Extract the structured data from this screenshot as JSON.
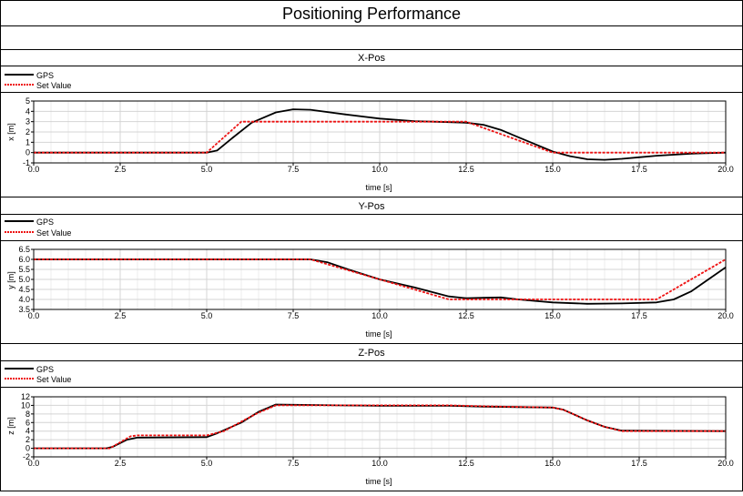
{
  "page": {
    "title": "Positioning Performance"
  },
  "colors": {
    "gps": "#000000",
    "set_value": "#ee1111",
    "grid": "#d4d4d4",
    "frame": "#000000"
  },
  "chart_data": [
    {
      "type": "line",
      "title": "X-Pos",
      "xlabel": "time [s]",
      "ylabel": "x [m]",
      "xlim": [
        0,
        20
      ],
      "ylim": [
        -1,
        5
      ],
      "xticks": [
        "0.0",
        "2.5",
        "5.0",
        "7.5",
        "10.0",
        "12.5",
        "15.0",
        "17.5",
        "20.0"
      ],
      "yticks": [
        "-1",
        "0",
        "1",
        "2",
        "3",
        "4",
        "5"
      ],
      "grid": true,
      "legend": "top-left",
      "series": [
        {
          "name": "GPS",
          "color": "#000000",
          "style": "solid",
          "x": [
            0,
            5.0,
            5.3,
            5.7,
            6.3,
            7.0,
            7.5,
            8.0,
            9.0,
            10.0,
            11.0,
            12.0,
            12.5,
            13.0,
            13.5,
            14.0,
            14.5,
            15.0,
            15.5,
            16.0,
            16.5,
            17.0,
            17.5,
            18.0,
            19.0,
            20.0
          ],
          "y": [
            0,
            0,
            0.2,
            1.3,
            2.9,
            3.9,
            4.2,
            4.15,
            3.7,
            3.3,
            3.05,
            2.95,
            2.9,
            2.7,
            2.2,
            1.5,
            0.8,
            0.1,
            -0.35,
            -0.65,
            -0.7,
            -0.6,
            -0.45,
            -0.3,
            -0.1,
            0
          ]
        },
        {
          "name": "Set Value",
          "color": "#ee1111",
          "style": "dashed",
          "x": [
            0,
            5.0,
            6.0,
            12.5,
            15.0,
            20.0
          ],
          "y": [
            0,
            0,
            3,
            3,
            0,
            0
          ]
        }
      ]
    },
    {
      "type": "line",
      "title": "Y-Pos",
      "xlabel": "time [s]",
      "ylabel": "y [m]",
      "xlim": [
        0,
        20
      ],
      "ylim": [
        3.5,
        6.5
      ],
      "xticks": [
        "0.0",
        "2.5",
        "5.0",
        "7.5",
        "10.0",
        "12.5",
        "15.0",
        "17.5",
        "20.0"
      ],
      "yticks": [
        "3.5",
        "4.0",
        "4.5",
        "5.0",
        "5.5",
        "6.0",
        "6.5"
      ],
      "grid": true,
      "legend": "top-left",
      "series": [
        {
          "name": "GPS",
          "color": "#000000",
          "style": "solid",
          "x": [
            0,
            8.0,
            8.5,
            9.0,
            10.0,
            11.0,
            12.0,
            12.5,
            13.0,
            13.5,
            14.0,
            15.0,
            16.0,
            17.0,
            18.0,
            18.5,
            19.0,
            20.0
          ],
          "y": [
            6.0,
            6.0,
            5.85,
            5.55,
            5.0,
            4.6,
            4.15,
            4.06,
            4.08,
            4.1,
            4.0,
            3.85,
            3.78,
            3.8,
            3.85,
            4.0,
            4.4,
            5.6
          ]
        },
        {
          "name": "Set Value",
          "color": "#ee1111",
          "style": "dashed",
          "x": [
            0,
            8.0,
            12.0,
            18.0,
            20.0
          ],
          "y": [
            6.0,
            6.0,
            4.0,
            4.0,
            6.0
          ]
        }
      ]
    },
    {
      "type": "line",
      "title": "Z-Pos",
      "xlabel": "time [s]",
      "ylabel": "z [m]",
      "xlim": [
        0,
        20
      ],
      "ylim": [
        -2,
        12
      ],
      "xticks": [
        "0.0",
        "2.5",
        "5.0",
        "7.5",
        "10.0",
        "12.5",
        "15.0",
        "17.5",
        "20.0"
      ],
      "yticks": [
        "-2",
        "0",
        "2",
        "4",
        "6",
        "8",
        "10",
        "12"
      ],
      "grid": true,
      "legend": "top-left",
      "series": [
        {
          "name": "GPS",
          "color": "#000000",
          "style": "solid",
          "x": [
            0,
            2.1,
            2.3,
            2.7,
            3.0,
            5.0,
            5.3,
            6.0,
            6.5,
            7.0,
            10.0,
            12.0,
            13.0,
            15.0,
            15.3,
            16.0,
            16.5,
            17.0,
            20.0
          ],
          "y": [
            0,
            0,
            0.4,
            2.0,
            2.5,
            2.6,
            3.5,
            6.0,
            8.5,
            10.2,
            9.9,
            9.9,
            9.7,
            9.5,
            9.0,
            6.5,
            5.0,
            4.1,
            4.0
          ]
        },
        {
          "name": "Set Value",
          "color": "#ee1111",
          "style": "dashed",
          "x": [
            0,
            2.2,
            2.8,
            3.0,
            5.0,
            5.5,
            6.0,
            6.5,
            7.0,
            10.0,
            12.0,
            13.0,
            15.0,
            15.3,
            16.0,
            16.5,
            17.0,
            20.0
          ],
          "y": [
            0,
            0,
            2.8,
            3.0,
            3.0,
            4.0,
            6.2,
            8.3,
            10.0,
            10.0,
            10.0,
            9.8,
            9.5,
            9.0,
            6.5,
            5.0,
            4.0,
            4.0
          ]
        }
      ]
    }
  ]
}
